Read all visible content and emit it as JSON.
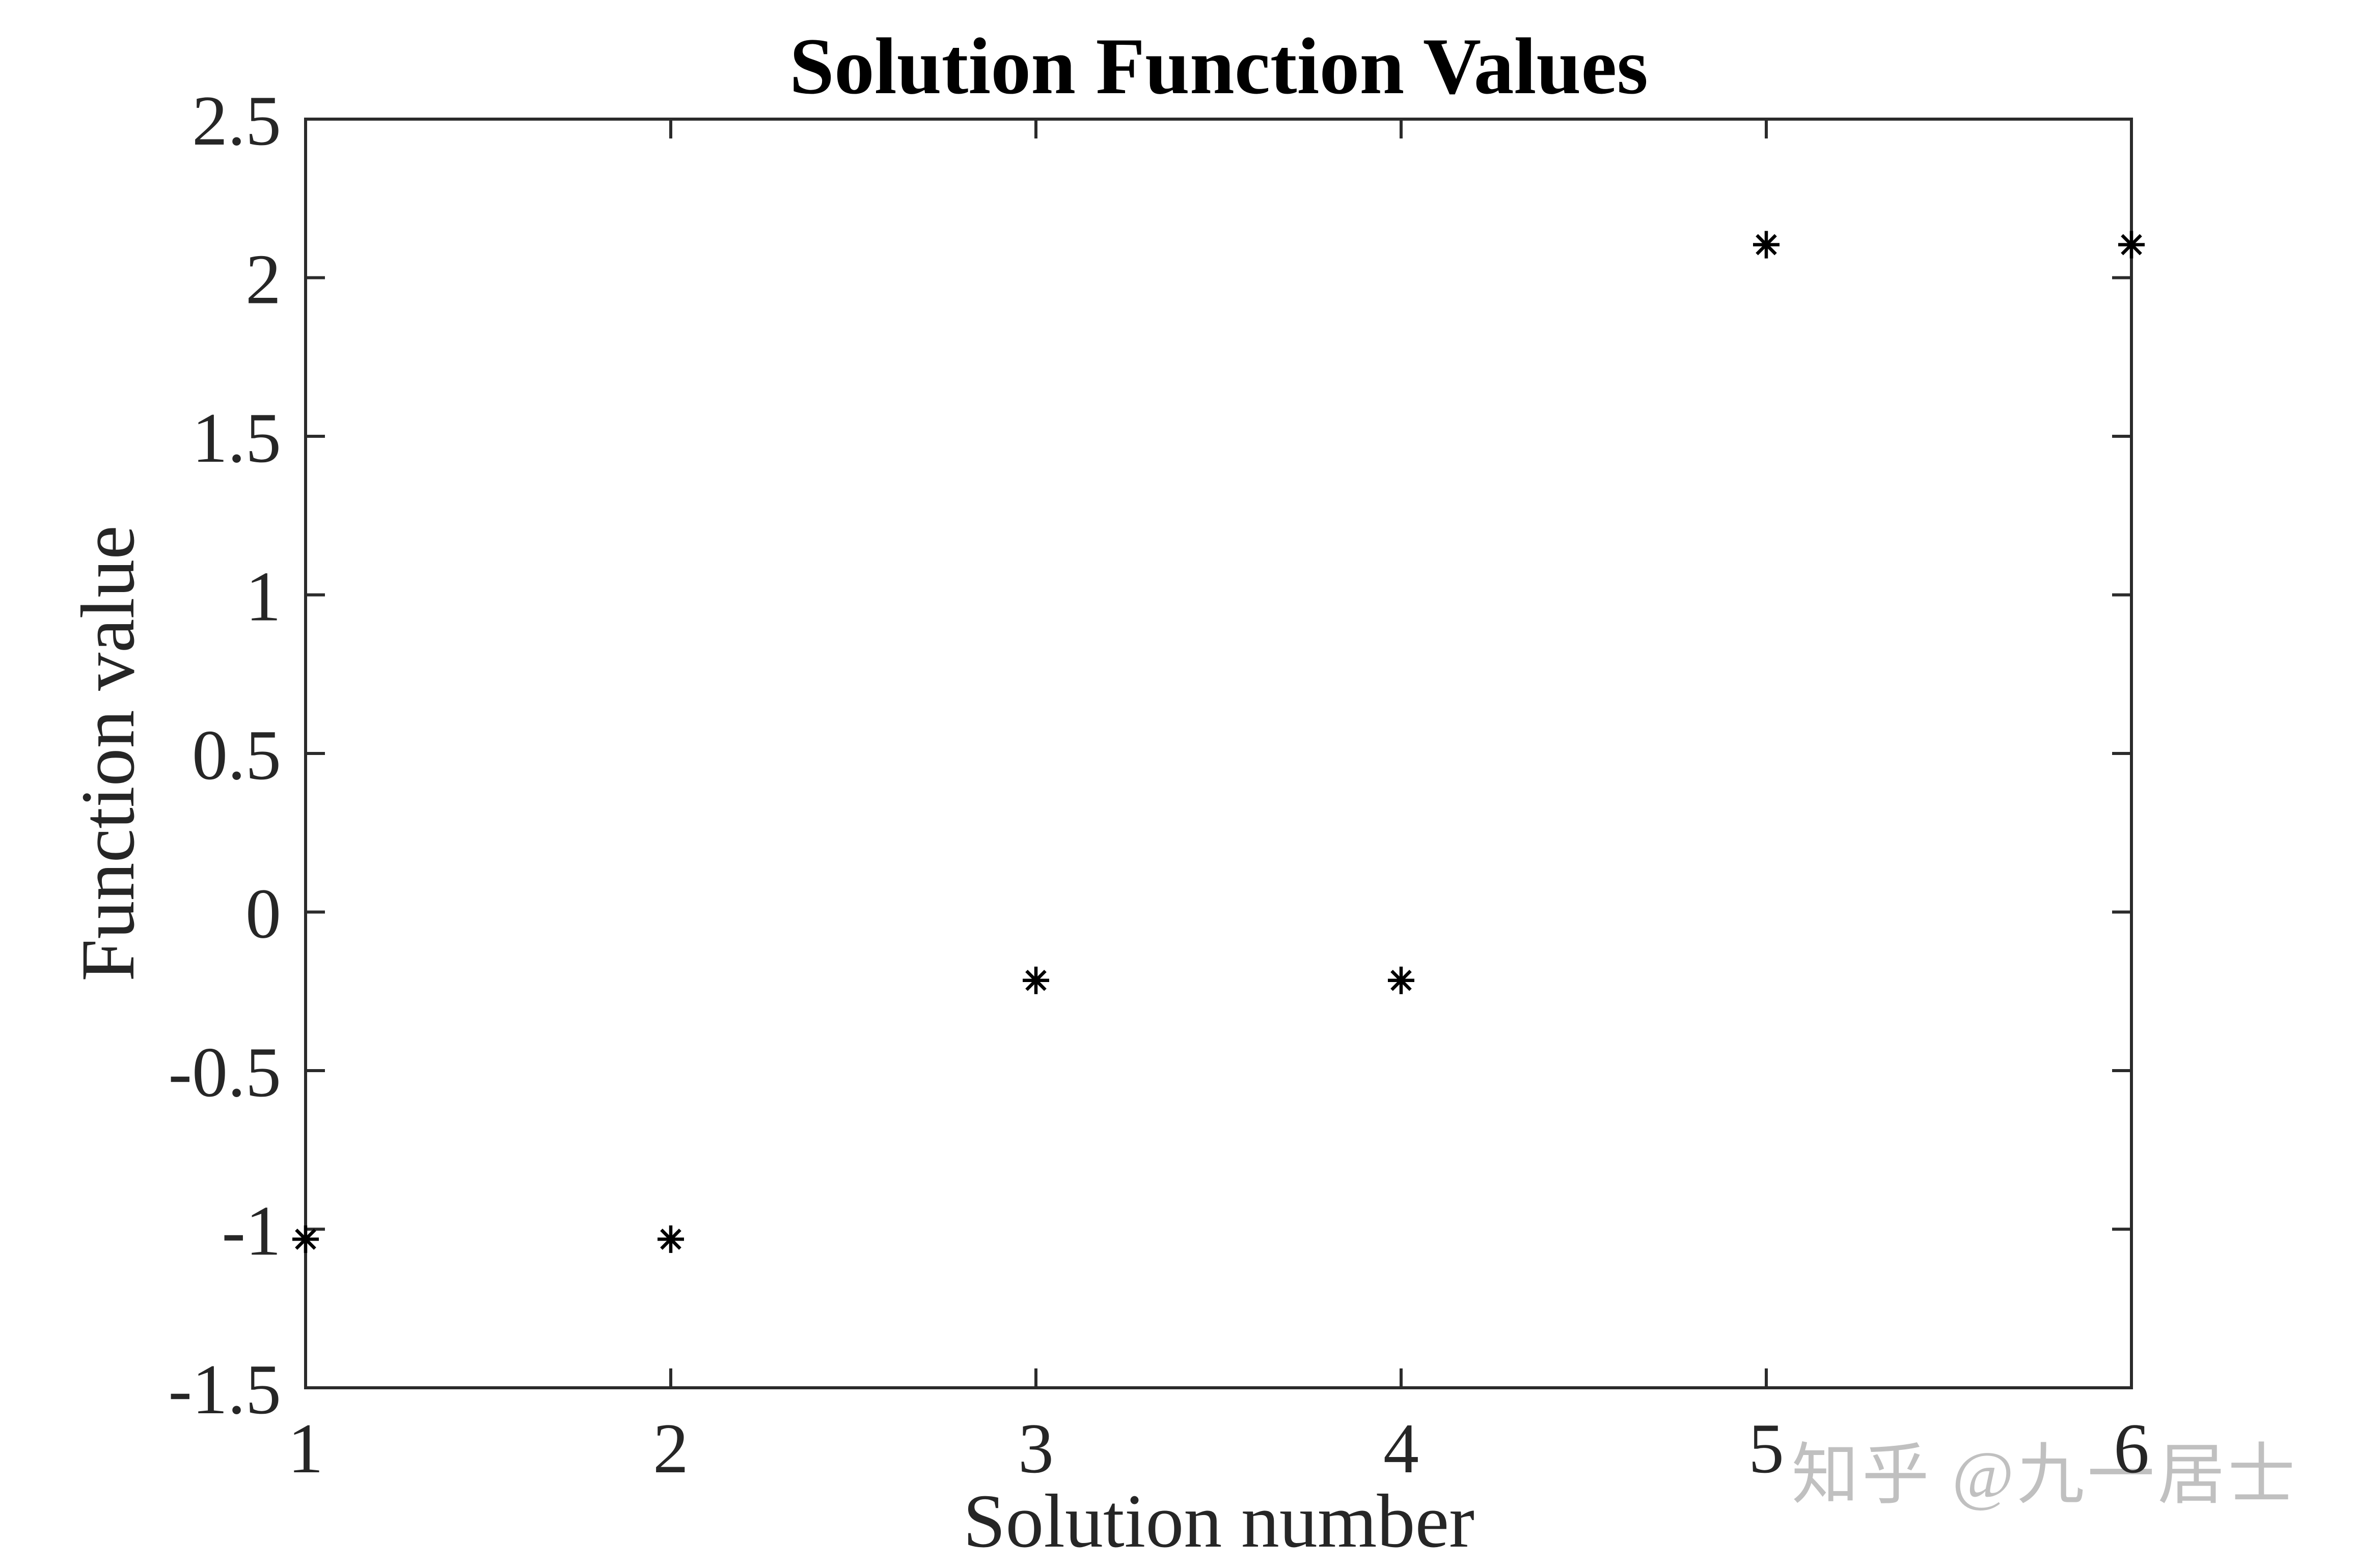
{
  "figure": {
    "background": "#ffffff",
    "axis_color": "#2b2b2b",
    "tick_text_color": "#262626",
    "title_color": "#000000",
    "marker_color": "#000000"
  },
  "watermark": {
    "text": "知乎 @九一居士",
    "color": "#c0c0c0"
  },
  "chart_data": {
    "type": "scatter",
    "title": "Solution Function Values",
    "xlabel": "Solution number",
    "ylabel": "Function value",
    "x": [
      1,
      2,
      3,
      4,
      5,
      6
    ],
    "y": [
      -1.0316,
      -1.0316,
      -0.2155,
      -0.2155,
      2.1042,
      2.1042
    ],
    "xlim": [
      1,
      6
    ],
    "ylim": [
      -1.5,
      2.5
    ],
    "xticks": [
      1,
      2,
      3,
      4,
      5,
      6
    ],
    "yticks": [
      -1.5,
      -1,
      -0.5,
      0,
      0.5,
      1,
      1.5,
      2,
      2.5
    ],
    "marker": "asterisk",
    "grid": false,
    "legend": null,
    "box": true,
    "tick_direction": "in"
  }
}
